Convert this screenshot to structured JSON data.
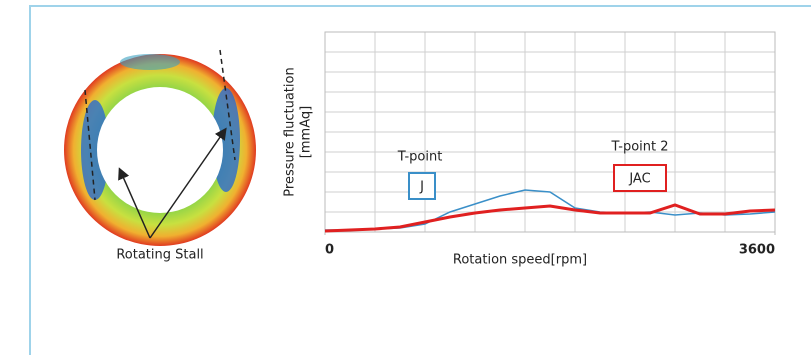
{
  "figure": {
    "ring_label": "Rotating Stall"
  },
  "chart_data": {
    "type": "line",
    "x_label": "Rotation speed[rpm]",
    "y_label": [
      "Pressure fluctuation",
      "[mmAq]"
    ],
    "x": [
      0,
      200,
      400,
      600,
      800,
      1000,
      1200,
      1400,
      1600,
      1800,
      2000,
      2200,
      2400,
      2600,
      2800,
      3000,
      3200,
      3400,
      3600
    ],
    "series": [
      {
        "name": "T-point",
        "tag": "J",
        "color": "#3a8fc8",
        "values": [
          0.1,
          0.1,
          0.15,
          0.2,
          0.4,
          1.0,
          1.4,
          1.8,
          2.1,
          2.0,
          1.2,
          1.0,
          0.95,
          1.0,
          0.85,
          0.95,
          0.85,
          0.9,
          1.0
        ]
      },
      {
        "name": "T-point 2",
        "tag": "JAC",
        "color": "#e02020",
        "values": [
          0.05,
          0.1,
          0.15,
          0.25,
          0.5,
          0.75,
          0.95,
          1.1,
          1.2,
          1.3,
          1.1,
          0.95,
          0.95,
          0.95,
          1.35,
          0.9,
          0.9,
          1.05,
          1.1
        ]
      }
    ],
    "xlim": [
      0,
      3600
    ],
    "xticks": [
      0,
      3600
    ],
    "ylim": [
      0,
      10
    ],
    "grid": true
  }
}
